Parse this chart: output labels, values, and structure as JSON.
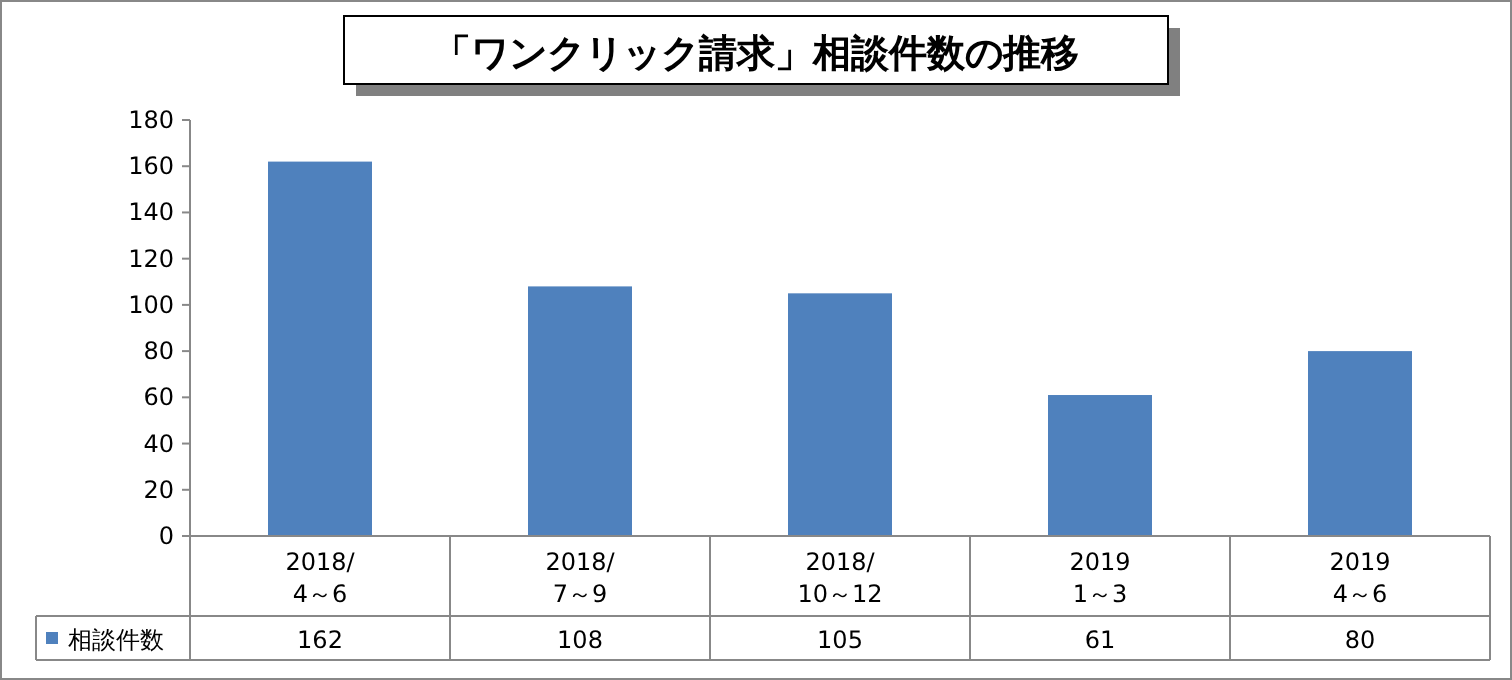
{
  "chart_data": {
    "type": "bar",
    "title": "「ワンクリック請求」相談件数の推移",
    "categories": [
      "2018/\n4～6",
      "2018/\n7～9",
      "2018/\n10～12",
      "2019\n1～3",
      "2019\n4～6"
    ],
    "series": [
      {
        "name": "相談件数",
        "color": "#4f81bd",
        "values": [
          162,
          108,
          105,
          61,
          80
        ]
      }
    ],
    "ylim": [
      0,
      180
    ],
    "yticks": [
      0,
      20,
      40,
      60,
      80,
      100,
      120,
      140,
      160,
      180
    ],
    "grid": false,
    "data_labels": true
  }
}
